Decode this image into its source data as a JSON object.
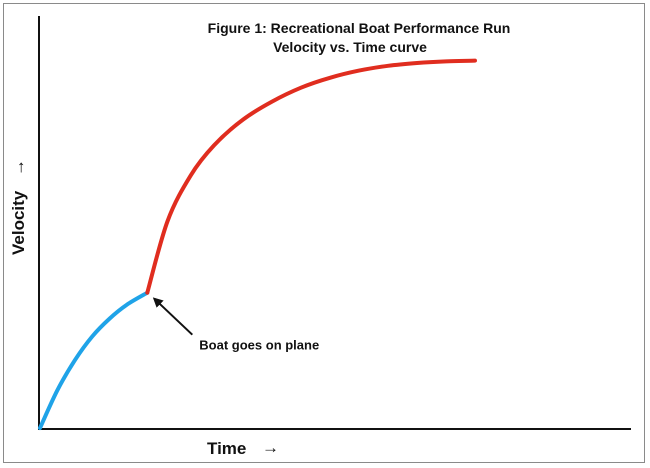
{
  "chart_data": {
    "type": "line",
    "title": "Figure 1: Recreational Boat Performance Run",
    "subtitle": "Velocity vs. Time curve",
    "xlabel": "Time",
    "ylabel": "Velocity",
    "xlim": [
      0,
      100
    ],
    "ylim": [
      0,
      100
    ],
    "grid": false,
    "series": [
      {
        "color": "#1fa3e8",
        "x": [
          0,
          3,
          6,
          9,
          12,
          15,
          18.5
        ],
        "y": [
          0,
          9.5,
          17,
          23,
          27.5,
          31,
          34
        ]
      },
      {
        "color": "#e02d1f",
        "x": [
          18.5,
          22,
          26,
          30,
          35,
          40,
          45,
          50,
          55,
          60,
          65,
          70,
          75
        ],
        "y": [
          34,
          52,
          63.5,
          71,
          77.5,
          82,
          85.5,
          88,
          89.8,
          91,
          91.7,
          92.1,
          92.3
        ]
      }
    ],
    "annotations": [
      {
        "text": "Boat goes on plane",
        "x": 18.5,
        "y": 34
      }
    ],
    "arrows": {
      "x_axis_arrow": "→",
      "y_axis_arrow": "→"
    }
  }
}
